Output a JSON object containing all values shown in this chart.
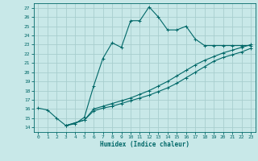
{
  "title": "",
  "xlabel": "Humidex (Indice chaleur)",
  "bg_color": "#c8e8e8",
  "grid_color": "#a8cece",
  "line_color": "#006868",
  "xlim": [
    -0.5,
    23.5
  ],
  "ylim": [
    13.5,
    27.5
  ],
  "xticks": [
    0,
    1,
    2,
    3,
    4,
    5,
    6,
    7,
    8,
    9,
    10,
    11,
    12,
    13,
    14,
    15,
    16,
    17,
    18,
    19,
    20,
    21,
    22,
    23
  ],
  "yticks": [
    14,
    15,
    16,
    17,
    18,
    19,
    20,
    21,
    22,
    23,
    24,
    25,
    26,
    27
  ],
  "line1_x": [
    0,
    1,
    2,
    3,
    4,
    5,
    6,
    7,
    8,
    9,
    10,
    11,
    12,
    13,
    14,
    15,
    16,
    17,
    18,
    19,
    20,
    21,
    22,
    23
  ],
  "line1_y": [
    16.1,
    15.9,
    15.0,
    14.2,
    14.4,
    15.1,
    18.5,
    21.5,
    23.2,
    22.7,
    25.6,
    25.6,
    27.1,
    26.0,
    24.6,
    24.6,
    25.0,
    23.6,
    22.9,
    22.9,
    22.9,
    22.9,
    22.9,
    22.9
  ],
  "line2_x": [
    3,
    5,
    6,
    7,
    8,
    9,
    10,
    11,
    12,
    13,
    14,
    15,
    16,
    17,
    18,
    19,
    20,
    21,
    22,
    23
  ],
  "line2_y": [
    14.2,
    14.8,
    16.0,
    16.3,
    16.6,
    16.9,
    17.2,
    17.6,
    18.0,
    18.5,
    19.0,
    19.6,
    20.2,
    20.8,
    21.3,
    21.7,
    22.1,
    22.4,
    22.7,
    23.0
  ],
  "line3_x": [
    3,
    5,
    6,
    7,
    8,
    9,
    10,
    11,
    12,
    13,
    14,
    15,
    16,
    17,
    18,
    19,
    20,
    21,
    22,
    23
  ],
  "line3_y": [
    14.2,
    14.8,
    15.8,
    16.1,
    16.3,
    16.6,
    16.9,
    17.2,
    17.5,
    17.9,
    18.3,
    18.8,
    19.4,
    20.0,
    20.6,
    21.2,
    21.6,
    21.9,
    22.2,
    22.6
  ]
}
